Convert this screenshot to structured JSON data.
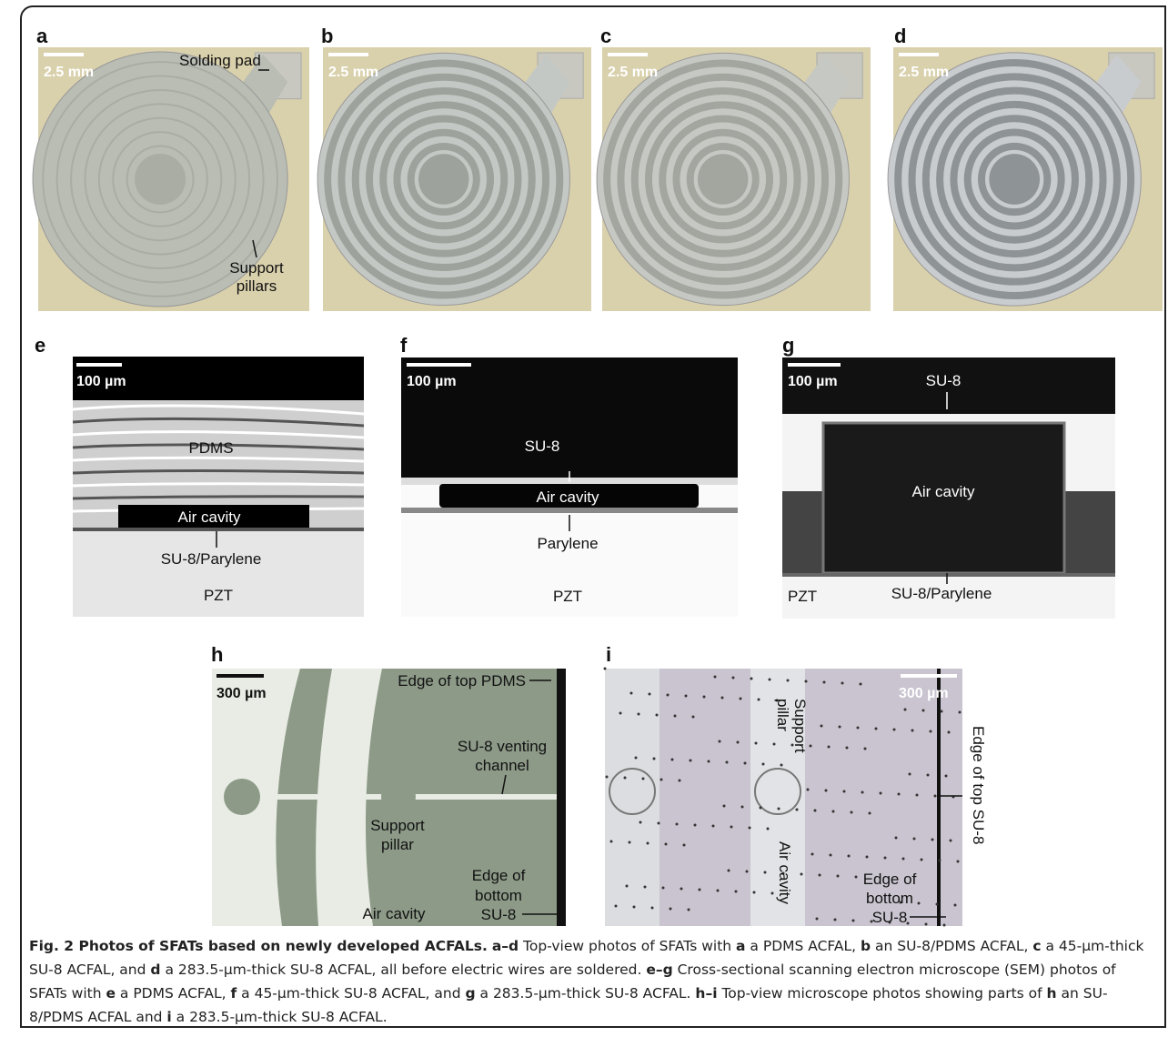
{
  "panels": [
    {
      "label": "a",
      "scale_bar": "2.5 mm",
      "annotations": [
        [
          "Solding pad"
        ],
        [
          "Support",
          "pillars"
        ]
      ]
    },
    {
      "label": "b",
      "scale_bar": "2.5 mm"
    },
    {
      "label": "c",
      "scale_bar": "2.5 mm"
    },
    {
      "label": "d",
      "scale_bar": "2.5 mm"
    },
    {
      "label": "e",
      "scale_bar": "100 µm",
      "annotations": [
        [
          "PDMS"
        ],
        [
          "Air cavity"
        ],
        [
          "SU-8/Parylene"
        ],
        [
          "PZT"
        ]
      ]
    },
    {
      "label": "f",
      "scale_bar": "100 µm",
      "annotations": [
        [
          "SU-8"
        ],
        [
          "Air cavity"
        ],
        [
          "Parylene"
        ],
        [
          "PZT"
        ]
      ]
    },
    {
      "label": "g",
      "scale_bar": "100 µm",
      "annotations": [
        [
          "SU-8"
        ],
        [
          "Air cavity"
        ],
        [
          "PZT"
        ],
        [
          "SU-8/Parylene"
        ]
      ]
    },
    {
      "label": "h",
      "scale_bar": "300 µm",
      "annotations": [
        [
          "Edge of top PDMS"
        ],
        [
          "SU-8 venting",
          "channel"
        ],
        [
          "Support",
          "pillar"
        ],
        [
          "Edge of",
          "bottom",
          "SU-8"
        ],
        [
          "Air cavity"
        ]
      ]
    },
    {
      "label": "i",
      "scale_bar": "300 µm",
      "annotations": [
        [
          "Support",
          "pillar"
        ],
        [
          "Air cavity"
        ],
        [
          "Edge of top SU-8"
        ],
        [
          "Edge of",
          "bottom",
          "SU-8"
        ]
      ]
    }
  ],
  "caption": {
    "segments": [
      "Fig. 2 Photos of SFATs based on newly developed ACFALs.",
      "a–d",
      " Top-view photos of SFATs with ",
      "a",
      " a PDMS ACFAL, ",
      "b",
      " an SU-8/PDMS ACFAL, ",
      "c",
      " a 45-µm-thick SU-8 ACFAL, and ",
      "d",
      " a 283.5-µm-thick SU-8 ACFAL, all before electric wires are soldered. ",
      "e–g",
      " Cross-sectional scanning electron microscope (SEM) photos of SFATs with ",
      "e",
      " a PDMS ACFAL, ",
      "f",
      " a 45-µm-thick SU-8 ACFAL, and ",
      "g",
      " a 283.5-µm-thick SU-8 ACFAL. ",
      "h–i",
      " Top-view microscope photos showing parts of ",
      "h",
      " an SU-8/PDMS ACFAL and ",
      "i",
      " a 283.5-µm-thick SU-8 ACFAL."
    ]
  }
}
